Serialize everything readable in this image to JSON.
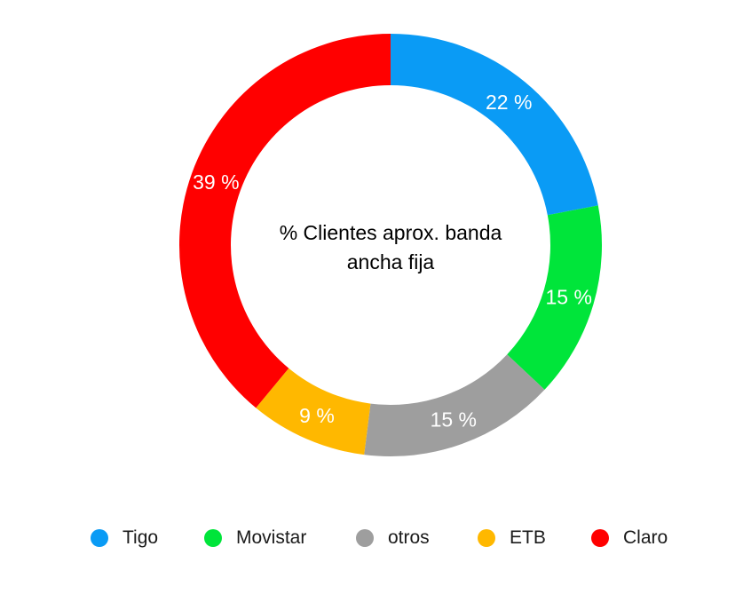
{
  "chart_data": {
    "type": "pie",
    "title": "% Clientes aprox. banda ancha fija",
    "categories": [
      "Tigo",
      "Movistar",
      "otros",
      "ETB",
      "Claro"
    ],
    "values": [
      22,
      15,
      15,
      9,
      39
    ],
    "data_labels": [
      "22 %",
      "15 %",
      "15 %",
      "9 %",
      "39 %"
    ],
    "colors": [
      "#0A9BF5",
      "#00E53A",
      "#9E9E9E",
      "#FFB800",
      "#FF0000"
    ],
    "donut": true,
    "legend": "bottom"
  }
}
